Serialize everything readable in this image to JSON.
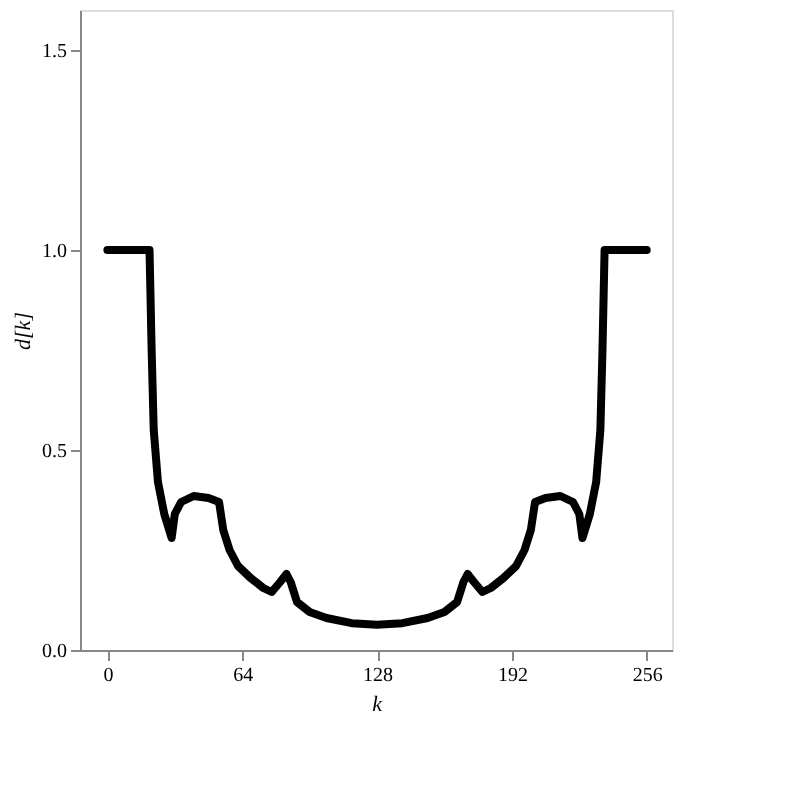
{
  "chart_data": {
    "type": "line",
    "xlabel": "k",
    "ylabel": "d[k]",
    "x": [
      0,
      20,
      21,
      22,
      24,
      27,
      30.5,
      32,
      35,
      41,
      48,
      53,
      55,
      58,
      62,
      68,
      74,
      78,
      82,
      85,
      87,
      90,
      96,
      104,
      116,
      128,
      140,
      152,
      160,
      166,
      169,
      171,
      174,
      178,
      182,
      188,
      194,
      198,
      201,
      203,
      208,
      215,
      221,
      224,
      225.5,
      229,
      232,
      234,
      235,
      236,
      256
    ],
    "series": [
      {
        "color": "#000000",
        "values": [
          1.0,
          1.0,
          0.75,
          0.55,
          0.42,
          0.34,
          0.28,
          0.34,
          0.37,
          0.385,
          0.38,
          0.37,
          0.3,
          0.25,
          0.21,
          0.18,
          0.155,
          0.145,
          0.17,
          0.19,
          0.17,
          0.12,
          0.095,
          0.08,
          0.067,
          0.063,
          0.067,
          0.08,
          0.095,
          0.12,
          0.17,
          0.19,
          0.17,
          0.145,
          0.155,
          0.18,
          0.21,
          0.25,
          0.3,
          0.37,
          0.38,
          0.385,
          0.37,
          0.34,
          0.28,
          0.34,
          0.42,
          0.55,
          0.75,
          1.0,
          1.0
        ]
      }
    ],
    "xlim": [
      -13,
      268
    ],
    "xticks": [
      0,
      64,
      128,
      192,
      256
    ],
    "ylim": [
      0,
      1.6
    ],
    "yticks": [
      {
        "value": 0,
        "label": "0.0"
      },
      0.5,
      {
        "value": 1,
        "label": "1.0"
      },
      1.5
    ],
    "grid": false,
    "legend": false,
    "marker": "none",
    "line_style": "solid"
  }
}
